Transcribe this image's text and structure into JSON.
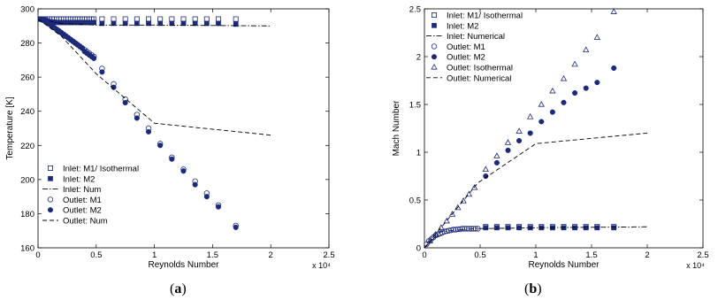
{
  "chart_data": [
    {
      "panel_label": "a",
      "type": "scatter",
      "xlabel": "Reynolds Number",
      "ylabel": "Temperature [K]",
      "xlim": [
        0,
        25000
      ],
      "ylim": [
        160,
        300
      ],
      "x_multiplier_label": "x 10⁴",
      "xticks": [
        0,
        5000,
        10000,
        15000,
        20000,
        25000
      ],
      "xtick_labels": [
        "0",
        "0.5",
        "1",
        "1.5",
        "2",
        "2.5"
      ],
      "yticks": [
        160,
        180,
        200,
        220,
        240,
        260,
        280,
        300
      ],
      "ytick_labels": [
        "160",
        "180",
        "200",
        "220",
        "240",
        "260",
        "280",
        "300"
      ],
      "grid": false,
      "legend_position": "bottom-left",
      "series": [
        {
          "name": "Inlet: M1/ Isothermal",
          "marker": "square-open",
          "color": "#1c2a7a",
          "x": [
            200,
            400,
            600,
            800,
            1000,
            1200,
            1400,
            1600,
            1800,
            2000,
            2200,
            2400,
            2600,
            2800,
            3000,
            3200,
            3400,
            3600,
            3800,
            4000,
            4200,
            4400,
            4600,
            4800,
            5500,
            6500,
            7500,
            8500,
            9500,
            10500,
            11500,
            12500,
            13500,
            14500,
            15500,
            17000
          ],
          "y": [
            294,
            294,
            294,
            294,
            294,
            294,
            294,
            294,
            294,
            294,
            294,
            294,
            294,
            294,
            294,
            294,
            294,
            294,
            294,
            294,
            294,
            294,
            294,
            294,
            294,
            294,
            294,
            294,
            294,
            294,
            294,
            294,
            294,
            294,
            294,
            294
          ]
        },
        {
          "name": "Inlet: M2",
          "marker": "square-filled",
          "color": "#1c2a7a",
          "x": [
            200,
            400,
            600,
            800,
            1000,
            1200,
            1400,
            1600,
            1800,
            2000,
            2200,
            2400,
            2600,
            2800,
            3000,
            3200,
            3400,
            3600,
            3800,
            4000,
            4200,
            4400,
            4600,
            4800,
            5500,
            6500,
            7500,
            8500,
            9500,
            10500,
            11500,
            12500,
            13500,
            14500,
            15500,
            17000
          ],
          "y": [
            294,
            294,
            293.5,
            293,
            292.5,
            292.3,
            292.2,
            292.1,
            292,
            292,
            292,
            292,
            292,
            292,
            292,
            292,
            292,
            292,
            292,
            292,
            292,
            292,
            292,
            292,
            291.5,
            291.5,
            291.5,
            291.5,
            291.5,
            291.5,
            291.5,
            291.5,
            291.5,
            291.5,
            291.5,
            291
          ]
        },
        {
          "name": "Inlet: Num",
          "line": "dashdot",
          "color": "#000000",
          "x": [
            0,
            2000,
            5000,
            10000,
            20000
          ],
          "y": [
            294,
            291.5,
            290.5,
            290.5,
            290
          ]
        },
        {
          "name": "Outlet: M1",
          "marker": "circle-open",
          "color": "#1c2a7a",
          "x": [
            200,
            400,
            600,
            800,
            1000,
            1200,
            1400,
            1600,
            1800,
            2000,
            2200,
            2400,
            2600,
            2800,
            3000,
            3200,
            3400,
            3600,
            3800,
            4000,
            4200,
            4400,
            4600,
            4800,
            5500,
            6500,
            7500,
            8500,
            9500,
            10500,
            11500,
            12500,
            13500,
            14500,
            15500,
            17000
          ],
          "y": [
            294,
            293.5,
            293,
            292,
            291,
            290,
            289,
            288,
            287,
            286,
            285,
            284,
            283,
            282,
            281,
            280,
            279,
            278,
            277,
            276,
            275,
            274,
            273,
            272,
            265,
            256,
            247,
            238,
            230,
            221,
            213,
            206,
            199,
            192,
            185,
            173
          ]
        },
        {
          "name": "Outlet: M2",
          "marker": "circle-filled",
          "color": "#1c2a7a",
          "x": [
            200,
            400,
            600,
            800,
            1000,
            1200,
            1400,
            1600,
            1800,
            2000,
            2200,
            2400,
            2600,
            2800,
            3000,
            3200,
            3400,
            3600,
            3800,
            4000,
            4200,
            4400,
            4600,
            4800,
            5500,
            6500,
            7500,
            8500,
            9500,
            10500,
            11500,
            12500,
            13500,
            14500,
            15500,
            17000
          ],
          "y": [
            294,
            293.5,
            293,
            292,
            291,
            290,
            289,
            288,
            287,
            286,
            285,
            284,
            283,
            282,
            281,
            280,
            279,
            278,
            277,
            275,
            274,
            273,
            272,
            271,
            263,
            254,
            245,
            236,
            228,
            220,
            212,
            205,
            197,
            190,
            184,
            172
          ]
        },
        {
          "name": "Outlet: Num",
          "line": "dashed",
          "color": "#000000",
          "x": [
            0,
            2000,
            5000,
            10000,
            20000
          ],
          "y": [
            294,
            284,
            262,
            233,
            226
          ]
        }
      ]
    },
    {
      "panel_label": "b",
      "type": "scatter",
      "xlabel": "Reynolds Number",
      "ylabel": "Mach Number",
      "xlim": [
        0,
        25000
      ],
      "ylim": [
        0,
        2.5
      ],
      "x_multiplier_label": "x 10⁴",
      "xticks": [
        0,
        5000,
        10000,
        15000,
        20000,
        25000
      ],
      "xtick_labels": [
        "0",
        "0.5",
        "1",
        "1.5",
        "2",
        "2.5"
      ],
      "yticks": [
        0,
        0.5,
        1,
        1.5,
        2,
        2.5
      ],
      "ytick_labels": [
        "0",
        "0.5",
        "1",
        "1.5",
        "2",
        "2.5"
      ],
      "grid": false,
      "legend_position": "top-left",
      "series": [
        {
          "name": "Inlet: M1/ Isothermal",
          "marker": "square-open",
          "color": "#1c2a7a",
          "x": [
            5500,
            6500,
            7500,
            8500,
            9500,
            10500,
            11500,
            12500,
            13500,
            14500,
            15500,
            17000
          ],
          "y": [
            0.22,
            0.22,
            0.22,
            0.22,
            0.22,
            0.22,
            0.22,
            0.22,
            0.22,
            0.22,
            0.22,
            0.22
          ]
        },
        {
          "name": "Inlet: M2",
          "marker": "square-filled",
          "color": "#1c2a7a",
          "x": [
            5500,
            6500,
            7500,
            8500,
            9500,
            10500,
            11500,
            12500,
            13500,
            14500,
            15500,
            17000
          ],
          "y": [
            0.21,
            0.21,
            0.21,
            0.21,
            0.21,
            0.21,
            0.21,
            0.21,
            0.21,
            0.21,
            0.21,
            0.21
          ]
        },
        {
          "name": "Inlet: Numerical",
          "line": "dashdot",
          "color": "#000000",
          "x": [
            0,
            1500,
            4500,
            10000,
            20000
          ],
          "y": [
            0,
            0.17,
            0.2,
            0.21,
            0.22
          ]
        },
        {
          "name": "Outlet: M1",
          "marker": "circle-open",
          "color": "#1c2a7a",
          "x": [
            200,
            400,
            600,
            800,
            1000,
            1200,
            1400,
            1600,
            1800,
            2000,
            2200,
            2400,
            2600,
            2800,
            3000,
            3200,
            3400,
            3600,
            3800,
            4000,
            4200,
            4400,
            4600,
            4800
          ],
          "y": [
            0.04,
            0.07,
            0.09,
            0.11,
            0.13,
            0.14,
            0.15,
            0.16,
            0.17,
            0.175,
            0.18,
            0.185,
            0.19,
            0.19,
            0.195,
            0.195,
            0.2,
            0.2,
            0.2,
            0.2,
            0.2,
            0.2,
            0.2,
            0.2
          ]
        },
        {
          "name": "Outlet: M2",
          "marker": "circle-filled",
          "color": "#1c2a7a",
          "x": [
            5500,
            6500,
            7500,
            8500,
            9500,
            10500,
            11500,
            12500,
            13500,
            14500,
            15500,
            17000
          ],
          "y": [
            0.75,
            0.89,
            1.02,
            1.12,
            1.2,
            1.32,
            1.42,
            1.52,
            1.62,
            1.67,
            1.73,
            1.88
          ]
        },
        {
          "name": "Outlet: Isothermal",
          "marker": "triangle-open",
          "color": "#1c2a7a",
          "x": [
            500,
            1000,
            1500,
            2000,
            2500,
            3000,
            3500,
            4000,
            4500,
            5500,
            6500,
            7500,
            8500,
            9500,
            10500,
            11500,
            12500,
            13500,
            14500,
            15500,
            17000
          ],
          "y": [
            0.07,
            0.14,
            0.21,
            0.28,
            0.35,
            0.42,
            0.49,
            0.56,
            0.63,
            0.82,
            0.96,
            1.1,
            1.22,
            1.37,
            1.5,
            1.64,
            1.77,
            1.92,
            2.07,
            2.2,
            2.47
          ]
        },
        {
          "name": "Outlet: Numerical",
          "line": "dashed",
          "color": "#000000",
          "x": [
            0,
            4800,
            10000,
            20000
          ],
          "y": [
            0,
            0.68,
            1.09,
            1.2
          ]
        }
      ]
    }
  ]
}
